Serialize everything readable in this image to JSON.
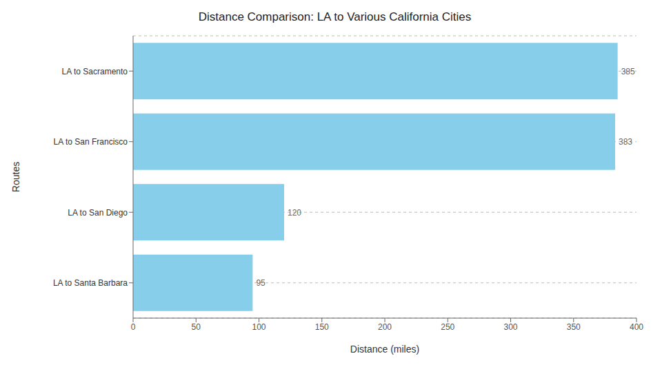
{
  "chart_data": {
    "type": "bar",
    "title": "Distance Comparison: LA to Various California Cities",
    "orientation": "horizontal",
    "categories": [
      "LA to Santa Barbara",
      "LA to San Diego",
      "LA to San Francisco",
      "LA to Sacramento"
    ],
    "values": [
      95,
      120,
      383,
      385
    ],
    "color": "#87CEEB",
    "xlabel": "Distance (miles)",
    "ylabel": "Routes",
    "xlim": [
      0,
      400
    ],
    "xticks": [
      0,
      50,
      100,
      150,
      200,
      250,
      300,
      350,
      400
    ],
    "data_labels": true,
    "grid": true
  }
}
